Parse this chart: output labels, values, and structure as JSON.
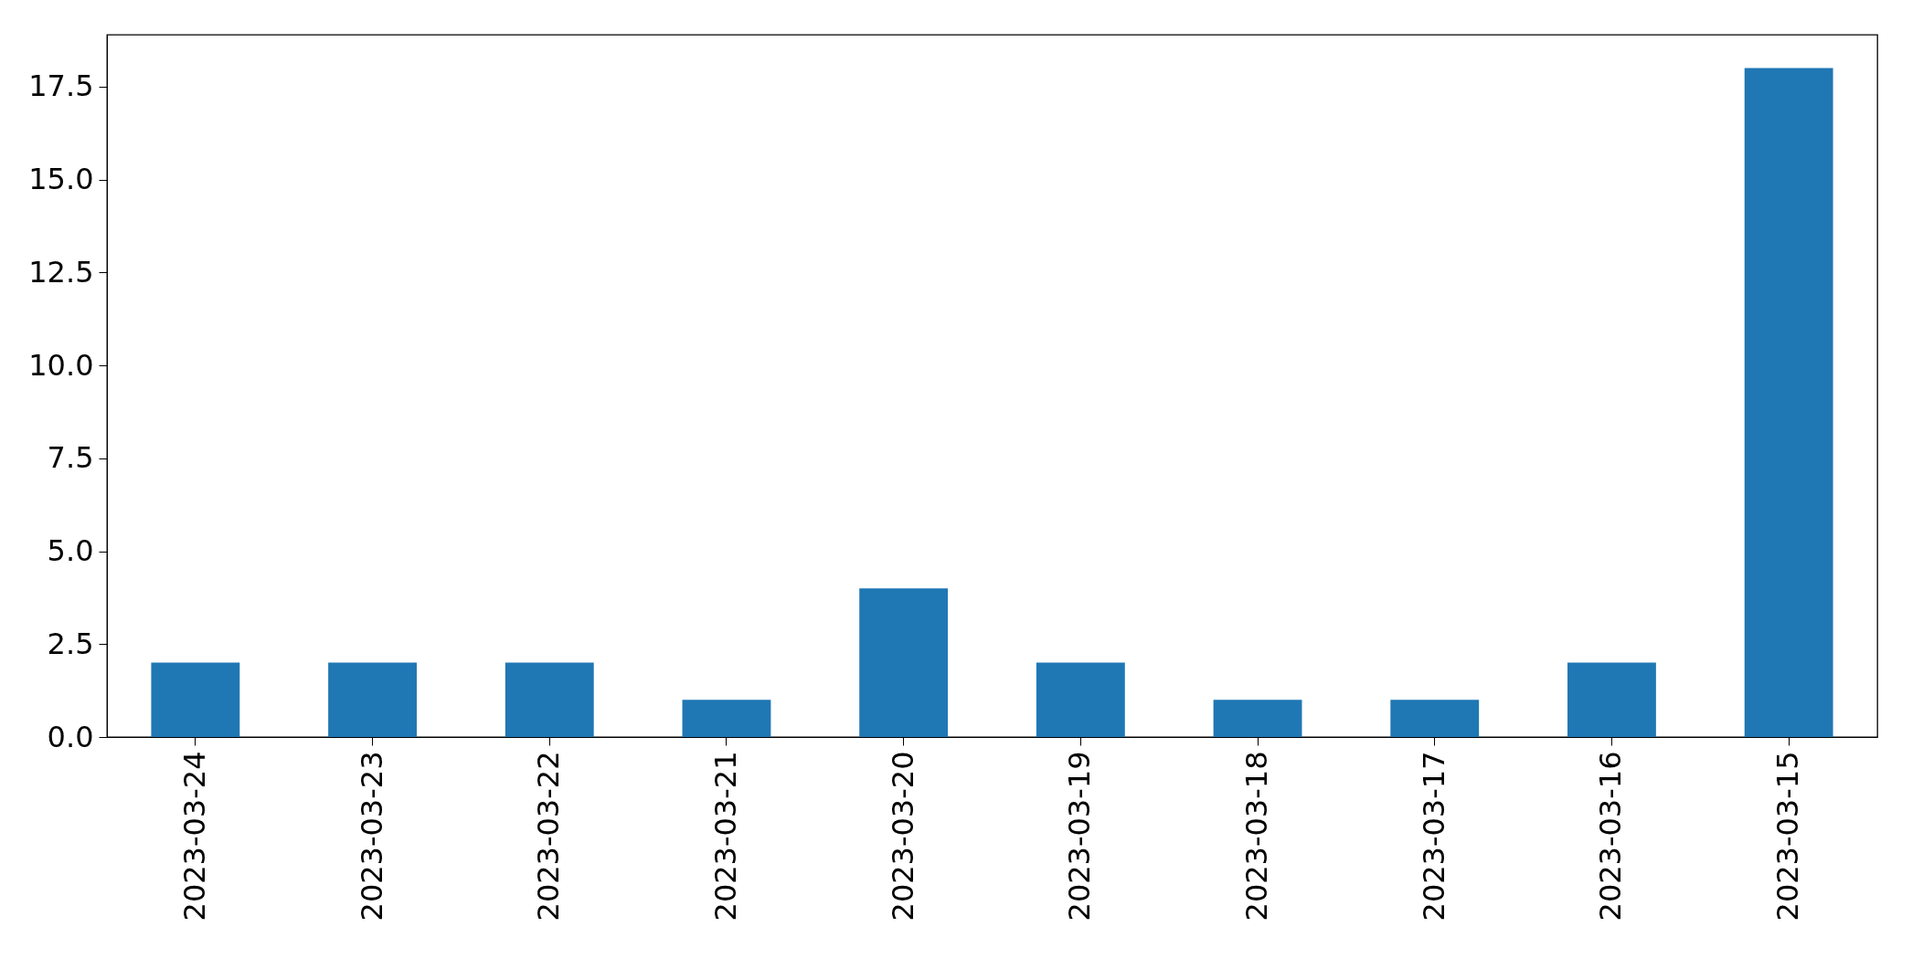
{
  "chart_data": {
    "type": "bar",
    "categories": [
      "2023-03-24",
      "2023-03-23",
      "2023-03-22",
      "2023-03-21",
      "2023-03-20",
      "2023-03-19",
      "2023-03-18",
      "2023-03-17",
      "2023-03-16",
      "2023-03-15"
    ],
    "values": [
      2,
      2,
      2,
      1,
      4,
      2,
      1,
      1,
      2,
      18
    ],
    "color": "#1f77b4",
    "ylim": [
      0,
      18.9
    ],
    "yticks": [
      {
        "value": 0,
        "label": "0.0"
      },
      {
        "value": 2.5,
        "label": "2.5"
      },
      {
        "value": 5,
        "label": "5.0"
      },
      {
        "value": 7.5,
        "label": "7.5"
      },
      {
        "value": 10,
        "label": "10.0"
      },
      {
        "value": 12.5,
        "label": "12.5"
      },
      {
        "value": 15,
        "label": "15.0"
      },
      {
        "value": 17.5,
        "label": "17.5"
      }
    ],
    "grid": false
  }
}
